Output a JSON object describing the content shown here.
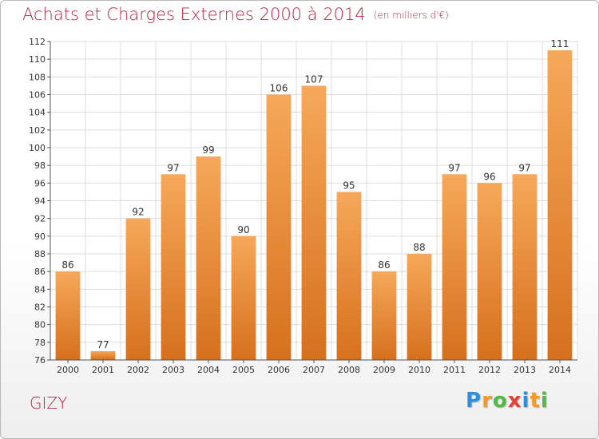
{
  "header": {
    "title": "Achats et Charges Externes 2000 à 2014",
    "subtitle": "(en milliers d'€)"
  },
  "place": "GIZY",
  "logo": {
    "letters": [
      "P",
      "r",
      "o",
      "x",
      "i",
      "t",
      "i"
    ],
    "colors": [
      "#2f8fdc",
      "#f39a2a",
      "#53b848",
      "#e2413b",
      "#2f8fdc",
      "#f39a2a",
      "#53b848"
    ]
  },
  "chart_data": {
    "type": "bar",
    "title": "Achats et Charges Externes 2000 à 2014",
    "subtitle": "(en milliers d'€)",
    "xlabel": "",
    "ylabel": "",
    "categories": [
      "2000",
      "2001",
      "2002",
      "2003",
      "2004",
      "2005",
      "2006",
      "2007",
      "2008",
      "2009",
      "2010",
      "2011",
      "2012",
      "2013",
      "2014"
    ],
    "values": [
      86,
      77,
      92,
      97,
      99,
      90,
      106,
      107,
      95,
      86,
      88,
      97,
      96,
      97,
      111
    ],
    "ylim": [
      76,
      112
    ],
    "yticks": [
      76,
      78,
      80,
      82,
      84,
      86,
      88,
      90,
      92,
      94,
      96,
      98,
      100,
      102,
      104,
      106,
      108,
      110,
      112
    ],
    "grid": true,
    "legend": "none",
    "bar_color_top": "#f6a85a",
    "bar_color_bottom": "#d6701d"
  }
}
